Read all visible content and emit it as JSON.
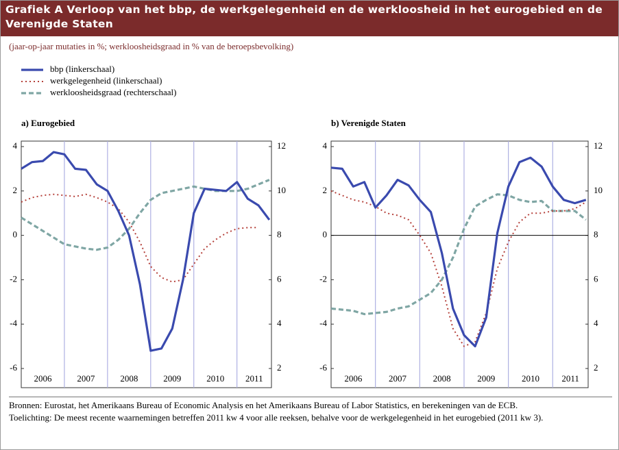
{
  "title": "Grafiek A Verloop van het bbp, de werkgelegenheid en de werkloosheid in het eurogebied en de Verenigde Staten",
  "subtitle": "(jaar-op-jaar mutaties in %; werkloosheidsgraad in % van de beroepsbevolking)",
  "notes": [
    "Bronnen: Eurostat, het Amerikaans Bureau of Economic Analysis en het Amerikaans Bureau of Labor Statistics, en berekeningen van de ECB.",
    "Toelichting: De meest recente waarnemingen betreffen 2011 kw 4 voor alle reeksen, behalve voor de werkgelegenheid in het eurogebied (2011 kw 3)."
  ],
  "chart_data": [
    {
      "type": "line",
      "title": "a) Eurogebied",
      "x": [
        2006,
        2006.25,
        2006.5,
        2006.75,
        2007,
        2007.25,
        2007.5,
        2007.75,
        2008,
        2008.25,
        2008.5,
        2008.75,
        2009,
        2009.25,
        2009.5,
        2009.75,
        2010,
        2010.25,
        2010.5,
        2010.75,
        2011,
        2011.25,
        2011.5,
        2011.75
      ],
      "xlim": [
        2006,
        2011.8
      ],
      "xticks": [
        {
          "value": 2006.5,
          "label": "2006"
        },
        {
          "value": 2007.5,
          "label": "2007"
        },
        {
          "value": 2008.5,
          "label": "2008"
        },
        {
          "value": 2009.5,
          "label": "2009"
        },
        {
          "value": 2010.5,
          "label": "2010"
        },
        {
          "value": 2011.4,
          "label": "2011"
        }
      ],
      "xgrid": [
        2007,
        2008,
        2009,
        2010,
        2011
      ],
      "ylim": [
        -6,
        4
      ],
      "yticks": [
        -6,
        -4,
        -2,
        0,
        2,
        4
      ],
      "y2lim": [
        2,
        12
      ],
      "y2ticks": [
        2,
        4,
        6,
        8,
        10,
        12
      ],
      "zero_line": false,
      "series": [
        {
          "name": "bbp (linkerschaal)",
          "color": "#3a4aae",
          "style": "solid",
          "values": [
            3.0,
            3.3,
            3.35,
            3.75,
            3.65,
            3.0,
            2.95,
            2.3,
            2.0,
            1.1,
            0.0,
            -2.2,
            -5.2,
            -5.1,
            -4.2,
            -2.0,
            1.0,
            2.1,
            2.05,
            2.0,
            2.4,
            1.65,
            1.35,
            0.7
          ]
        },
        {
          "name": "werkgelegenheid (linkerschaal)",
          "color": "#b5403a",
          "style": "dotted",
          "values": [
            1.5,
            1.7,
            1.8,
            1.85,
            1.8,
            1.75,
            1.85,
            1.7,
            1.5,
            1.2,
            0.6,
            -0.3,
            -1.4,
            -1.9,
            -2.1,
            -2.0,
            -1.3,
            -0.6,
            -0.2,
            0.1,
            0.3,
            0.35,
            0.35,
            null
          ]
        },
        {
          "name": "werkloosheidsgraad (rechterschaal)",
          "color": "#7fa6a4",
          "style": "dashed",
          "axis": "y2",
          "values": [
            8.8,
            8.5,
            8.2,
            7.9,
            7.6,
            7.5,
            7.4,
            7.35,
            7.45,
            7.8,
            8.3,
            9.0,
            9.6,
            9.9,
            10.0,
            10.1,
            10.2,
            10.1,
            10.0,
            10.0,
            10.0,
            10.1,
            10.3,
            10.5
          ]
        }
      ]
    },
    {
      "type": "line",
      "title": "b) Verenigde Staten",
      "x": [
        2006,
        2006.25,
        2006.5,
        2006.75,
        2007,
        2007.25,
        2007.5,
        2007.75,
        2008,
        2008.25,
        2008.5,
        2008.75,
        2009,
        2009.25,
        2009.5,
        2009.75,
        2010,
        2010.25,
        2010.5,
        2010.75,
        2011,
        2011.25,
        2011.5,
        2011.75
      ],
      "xlim": [
        2006,
        2011.8
      ],
      "xticks": [
        {
          "value": 2006.5,
          "label": "2006"
        },
        {
          "value": 2007.5,
          "label": "2007"
        },
        {
          "value": 2008.5,
          "label": "2008"
        },
        {
          "value": 2009.5,
          "label": "2009"
        },
        {
          "value": 2010.5,
          "label": "2010"
        },
        {
          "value": 2011.4,
          "label": "2011"
        }
      ],
      "xgrid": [
        2007,
        2008,
        2009,
        2010,
        2011
      ],
      "ylim": [
        -6,
        4
      ],
      "yticks": [
        -6,
        -4,
        -2,
        0,
        2,
        4
      ],
      "y2lim": [
        2,
        12
      ],
      "y2ticks": [
        2,
        4,
        6,
        8,
        10,
        12
      ],
      "zero_line": true,
      "series": [
        {
          "color": "#3a4aae",
          "style": "solid",
          "values": [
            3.05,
            3.0,
            2.2,
            2.4,
            1.25,
            1.8,
            2.5,
            2.25,
            1.6,
            1.05,
            -0.8,
            -3.3,
            -4.5,
            -5.0,
            -3.7,
            0.1,
            2.2,
            3.3,
            3.5,
            3.1,
            2.2,
            1.6,
            1.45,
            1.6
          ]
        },
        {
          "color": "#b5403a",
          "style": "dotted",
          "values": [
            2.0,
            1.8,
            1.6,
            1.5,
            1.3,
            1.0,
            0.9,
            0.7,
            0.0,
            -0.8,
            -2.3,
            -4.2,
            -5.0,
            -4.8,
            -3.5,
            -1.5,
            -0.3,
            0.6,
            1.0,
            1.0,
            1.1,
            1.1,
            1.2,
            1.5
          ]
        },
        {
          "color": "#7fa6a4",
          "style": "dashed",
          "axis": "y2",
          "values": [
            4.7,
            4.65,
            4.6,
            4.45,
            4.5,
            4.55,
            4.7,
            4.8,
            5.1,
            5.4,
            6.0,
            7.0,
            8.3,
            9.3,
            9.6,
            9.85,
            9.8,
            9.6,
            9.5,
            9.55,
            9.1,
            9.1,
            9.1,
            8.7
          ]
        }
      ]
    }
  ]
}
